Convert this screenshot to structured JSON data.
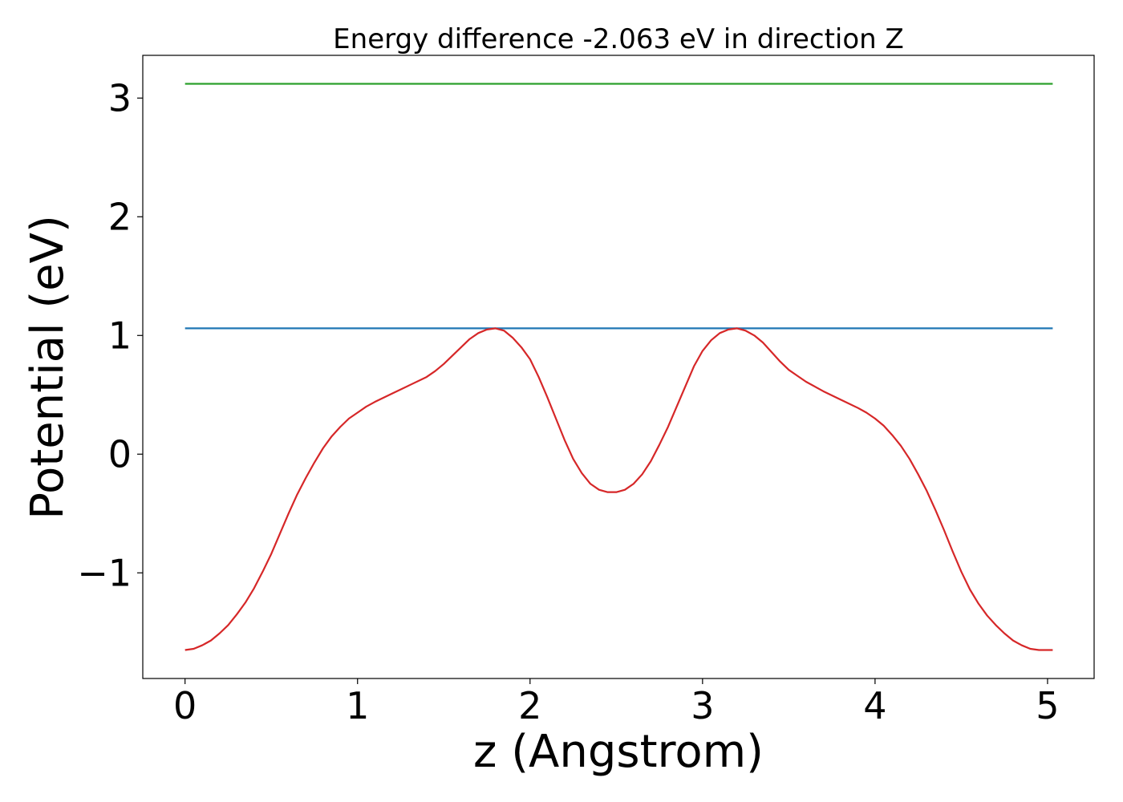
{
  "chart_data": {
    "type": "line",
    "title": "Energy difference -2.063 eV in direction Z",
    "xlabel": "z (Angstrom)",
    "ylabel": "Potential (eV)",
    "xlim": [
      -0.245,
      5.27
    ],
    "ylim": [
      -1.89,
      3.36
    ],
    "xticks": [
      0,
      1,
      2,
      3,
      4,
      5
    ],
    "xtick_labels": [
      "0",
      "1",
      "2",
      "3",
      "4",
      "5"
    ],
    "yticks": [
      -1,
      0,
      1,
      2,
      3
    ],
    "ytick_labels": [
      "−1",
      "0",
      "1",
      "2",
      "3"
    ],
    "grid": false,
    "series": [
      {
        "color": "#d62728",
        "x": [
          0.0,
          0.05,
          0.1,
          0.15,
          0.2,
          0.25,
          0.3,
          0.35,
          0.4,
          0.45,
          0.5,
          0.55,
          0.6,
          0.65,
          0.7,
          0.75,
          0.8,
          0.85,
          0.9,
          0.95,
          1.0,
          1.05,
          1.1,
          1.2,
          1.3,
          1.4,
          1.45,
          1.5,
          1.55,
          1.6,
          1.65,
          1.7,
          1.75,
          1.8,
          1.85,
          1.9,
          1.95,
          2.0,
          2.05,
          2.1,
          2.15,
          2.2,
          2.25,
          2.3,
          2.35,
          2.4,
          2.45,
          2.5,
          2.55,
          2.6,
          2.65,
          2.7,
          2.75,
          2.8,
          2.85,
          2.9,
          2.95,
          3.0,
          3.05,
          3.1,
          3.15,
          3.2,
          3.25,
          3.3,
          3.35,
          3.4,
          3.45,
          3.5,
          3.55,
          3.6,
          3.7,
          3.8,
          3.9,
          3.95,
          4.0,
          4.05,
          4.1,
          4.15,
          4.2,
          4.25,
          4.3,
          4.35,
          4.4,
          4.45,
          4.5,
          4.55,
          4.6,
          4.65,
          4.7,
          4.75,
          4.8,
          4.85,
          4.9,
          4.95,
          5.0,
          5.03
        ],
        "y": [
          -1.65,
          -1.64,
          -1.61,
          -1.57,
          -1.51,
          -1.44,
          -1.35,
          -1.25,
          -1.13,
          -0.99,
          -0.84,
          -0.67,
          -0.5,
          -0.34,
          -0.2,
          -0.07,
          0.05,
          0.15,
          0.23,
          0.3,
          0.35,
          0.4,
          0.44,
          0.51,
          0.58,
          0.65,
          0.7,
          0.76,
          0.83,
          0.9,
          0.97,
          1.02,
          1.05,
          1.06,
          1.04,
          0.98,
          0.9,
          0.8,
          0.65,
          0.48,
          0.3,
          0.12,
          -0.04,
          -0.16,
          -0.25,
          -0.3,
          -0.32,
          -0.32,
          -0.3,
          -0.25,
          -0.17,
          -0.06,
          0.08,
          0.23,
          0.4,
          0.57,
          0.74,
          0.87,
          0.96,
          1.02,
          1.05,
          1.06,
          1.04,
          1.0,
          0.94,
          0.86,
          0.78,
          0.71,
          0.66,
          0.61,
          0.53,
          0.46,
          0.39,
          0.35,
          0.3,
          0.24,
          0.16,
          0.07,
          -0.04,
          -0.17,
          -0.31,
          -0.47,
          -0.64,
          -0.82,
          -0.99,
          -1.14,
          -1.26,
          -1.36,
          -1.44,
          -1.51,
          -1.57,
          -1.61,
          -1.64,
          -1.65,
          -1.65,
          -1.65
        ]
      },
      {
        "color": "#1f77b4",
        "x": [
          0.0,
          5.03
        ],
        "y": [
          1.06,
          1.06
        ]
      },
      {
        "color": "#2ca02c",
        "x": [
          0.0,
          5.03
        ],
        "y": [
          3.12,
          3.12
        ]
      }
    ]
  }
}
